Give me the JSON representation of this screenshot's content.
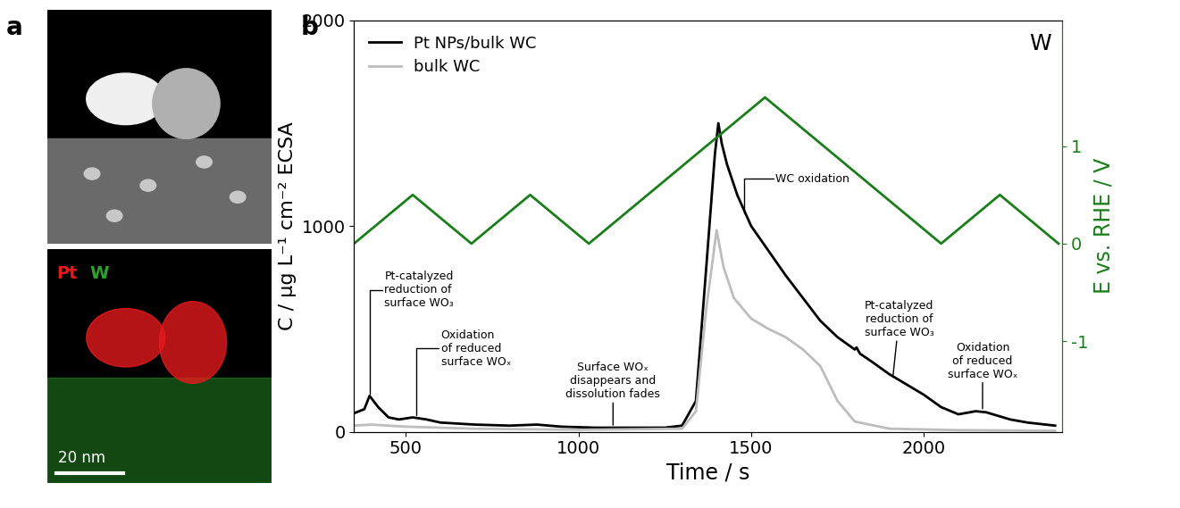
{
  "panel_a": {
    "label": "a",
    "map_labels": [
      {
        "text": "Pt",
        "color": "#e41a1c"
      },
      {
        "text": "W",
        "color": "#2ca02c"
      }
    ],
    "scale_bar": "20 nm"
  },
  "chart_data": {
    "type": "line",
    "label": "b",
    "corner_label": "W",
    "x_label": "Time / s",
    "y_label": "C / µg L⁻¹ cm⁻² ECSA",
    "y2_label": "E vs. RHE / V",
    "xlim": [
      350,
      2400
    ],
    "xticks": [
      500,
      1000,
      1500,
      2000
    ],
    "ylim": [
      0,
      2000
    ],
    "yticks": [
      0,
      1000,
      2000
    ],
    "y2lim": [
      -1.93,
      2.29
    ],
    "y2ticks": [
      -1,
      0,
      1
    ],
    "legend": "upper left",
    "series": [
      {
        "name": "Pt NPs/bulk WC",
        "color": "#000000",
        "x": [
          350,
          380,
          395,
          420,
          450,
          480,
          520,
          560,
          600,
          700,
          800,
          880,
          950,
          1050,
          1150,
          1250,
          1300,
          1340,
          1370,
          1395,
          1405,
          1415,
          1430,
          1460,
          1500,
          1550,
          1600,
          1650,
          1700,
          1750,
          1800,
          1805,
          1815,
          1850,
          1900,
          1950,
          2000,
          2050,
          2100,
          2150,
          2180,
          2250,
          2300,
          2380
        ],
        "values": [
          90,
          110,
          175,
          120,
          70,
          60,
          70,
          60,
          45,
          35,
          30,
          35,
          25,
          20,
          20,
          20,
          30,
          150,
          800,
          1350,
          1500,
          1400,
          1300,
          1150,
          1000,
          880,
          760,
          650,
          540,
          460,
          400,
          410,
          380,
          340,
          280,
          230,
          180,
          120,
          85,
          100,
          95,
          60,
          45,
          30
        ]
      },
      {
        "name": "bulk WC",
        "color": "#bdbdbd",
        "x": [
          350,
          400,
          500,
          700,
          1000,
          1300,
          1340,
          1370,
          1400,
          1420,
          1450,
          1500,
          1550,
          1600,
          1650,
          1700,
          1750,
          1800,
          1900,
          2100,
          2380
        ],
        "values": [
          30,
          35,
          25,
          15,
          10,
          15,
          100,
          600,
          980,
          800,
          650,
          550,
          500,
          460,
          400,
          320,
          150,
          50,
          15,
          8,
          5
        ]
      },
      {
        "name": "E",
        "axis": "y2",
        "color": "#1a7f1a",
        "x": [
          350,
          520,
          690,
          860,
          1030,
          1540,
          2050,
          2220,
          2390
        ],
        "values": [
          0,
          0.5,
          0,
          0.5,
          0,
          1.5,
          0,
          0.5,
          0
        ]
      }
    ],
    "annotations": [
      {
        "text": "Pt-catalyzed\nreduction of\nsurface WO₃",
        "x": 395,
        "y": 175
      },
      {
        "text": "Oxidation\nof reduced\nsurface WOₓ",
        "x": 530,
        "y": 70
      },
      {
        "text": "Surface WOₓ\ndisappears and\ndissolution fades",
        "x": 1100,
        "y": 20
      },
      {
        "text": "WC oxidation",
        "x": 1480,
        "y": 1050
      },
      {
        "text": "Pt-catalyzed\nreduction of\nsurface WO₃",
        "x": 1910,
        "y": 260
      },
      {
        "text": "Oxidation\nof reduced\nsurface WOₓ",
        "x": 2170,
        "y": 100
      }
    ]
  }
}
